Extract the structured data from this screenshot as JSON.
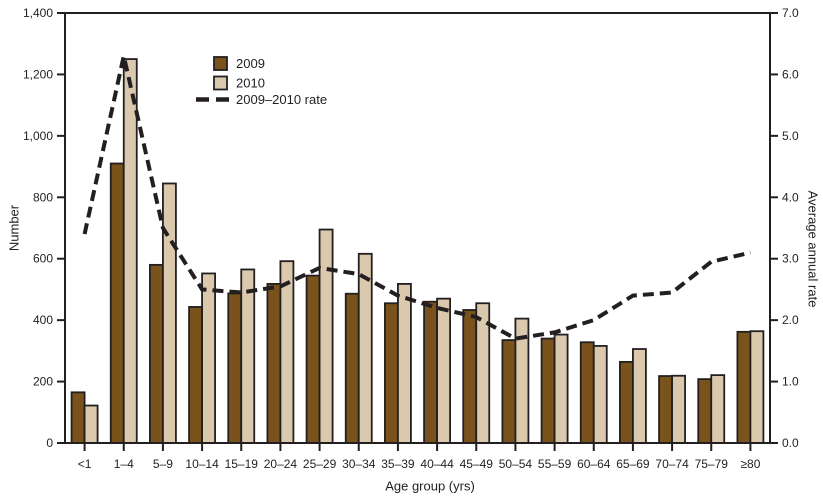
{
  "figure": {
    "background": "#ffffff",
    "text_color": "#231f20",
    "axis_color": "#231f20",
    "bar_2009_color": "#7a521c",
    "bar_2010_color": "#dbc9ae"
  },
  "chart_data": {
    "type": "bar",
    "categories": [
      "<1",
      "1–4",
      "5–9",
      "10–14",
      "15–19",
      "20–24",
      "25–29",
      "30–34",
      "35–39",
      "40–44",
      "45–49",
      "50–54",
      "55–59",
      "60–64",
      "65–69",
      "70–74",
      "75–79",
      "≥80"
    ],
    "series": [
      {
        "name": "2009",
        "type": "bar",
        "axis": "left",
        "color": "#7a521c",
        "values": [
          165,
          910,
          580,
          443,
          487,
          518,
          545,
          486,
          455,
          460,
          433,
          335,
          340,
          328,
          264,
          218,
          208,
          362
        ]
      },
      {
        "name": "2010",
        "type": "bar",
        "axis": "left",
        "color": "#dbc9ae",
        "values": [
          122,
          1250,
          845,
          552,
          565,
          592,
          695,
          616,
          518,
          470,
          455,
          405,
          353,
          316,
          306,
          219,
          221,
          364
        ]
      },
      {
        "name": "2009–2010 rate",
        "type": "line",
        "style": "dashed",
        "axis": "right",
        "color": "#231f20",
        "values": [
          3.4,
          6.3,
          3.5,
          2.5,
          2.45,
          2.55,
          2.85,
          2.75,
          2.4,
          2.2,
          2.05,
          1.7,
          1.8,
          2.0,
          2.4,
          2.45,
          2.95,
          3.1
        ]
      }
    ],
    "xlabel": "Age group (yrs)",
    "ylabel_left": "Number",
    "ylabel_right": "Average annual rate",
    "ylim_left": [
      0,
      1400
    ],
    "ylim_right": [
      0.0,
      7.0
    ],
    "yticks_left": [
      "0",
      "200",
      "400",
      "600",
      "800",
      "1,000",
      "1,200",
      "1,400"
    ],
    "yticks_right": [
      "0.0",
      "1.0",
      "2.0",
      "3.0",
      "4.0",
      "5.0",
      "6.0",
      "7.0"
    ],
    "legend": {
      "position": "inside-top-left",
      "items": [
        "2009",
        "2010",
        "2009–2010 rate"
      ]
    },
    "grid": false
  }
}
